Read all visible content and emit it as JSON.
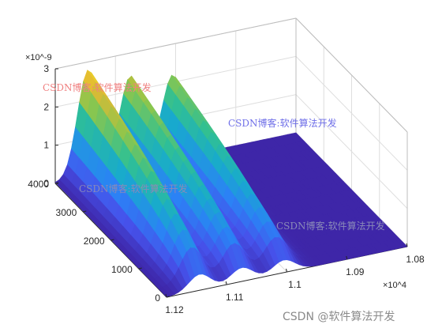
{
  "chart_data": {
    "type": "surface",
    "title": "",
    "xlabel": "",
    "ylabel": "",
    "zlabel": "",
    "x_ticks": [
      "1.08",
      "1.09",
      "1.1",
      "1.11",
      "1.12"
    ],
    "x_multiplier": "×10^4",
    "x_range": [
      10800,
      11200
    ],
    "y_ticks": [
      "0",
      "1000",
      "2000",
      "3000",
      "4000"
    ],
    "y_range": [
      0,
      4000
    ],
    "z_ticks": [
      "0",
      "1",
      "2",
      "3"
    ],
    "z_multiplier": "×10^-9",
    "z_range": [
      0,
      3e-09
    ],
    "grid": true,
    "colormap": "parula",
    "peaks": [
      {
        "x": 11145,
        "z_max": 2.8e-09
      },
      {
        "x": 11075,
        "z_max": 2.4e-09
      },
      {
        "x": 11005,
        "z_max": 2.2e-09
      }
    ],
    "watermarks": [
      {
        "text": "CSDN博客:软件算法开发",
        "color": "#f08080"
      },
      {
        "text": "CSDN博客:软件算法开发",
        "color": "#6f6fe8"
      },
      {
        "text": "CSDN博客:软件算法开发",
        "color": "#8a8ab8"
      },
      {
        "text": "CSDN博客:软件算法开发",
        "color": "#8a8ab8"
      }
    ]
  },
  "footer": {
    "credit": "CSDN @软件算法开发"
  }
}
